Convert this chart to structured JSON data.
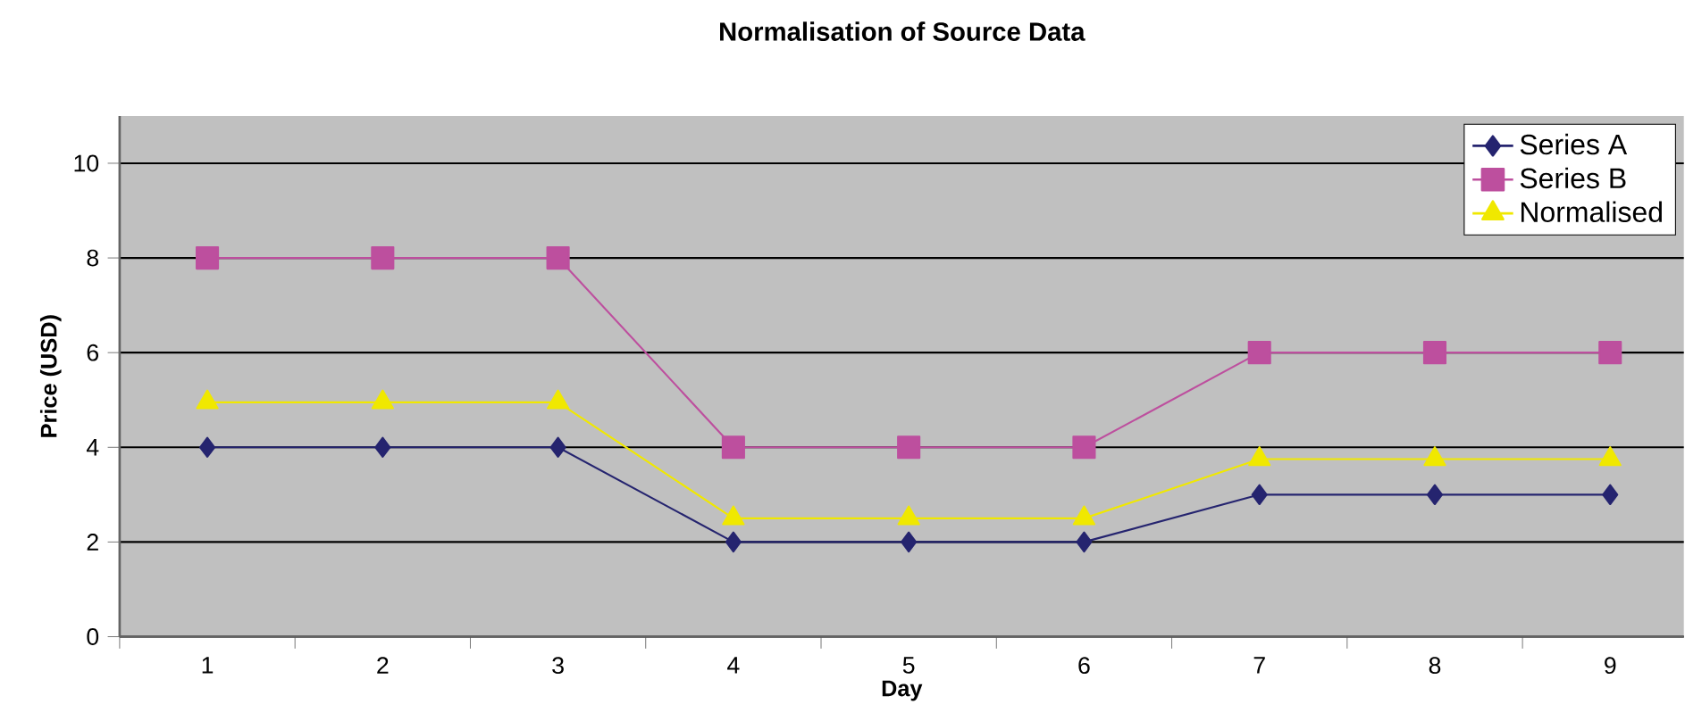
{
  "chart_data": {
    "type": "line",
    "title": "Normalisation of Source Data",
    "xlabel": "Day",
    "ylabel": "Price (USD)",
    "categories": [
      "1",
      "2",
      "3",
      "4",
      "5",
      "6",
      "7",
      "8",
      "9"
    ],
    "series": [
      {
        "name": "Series A",
        "color": "#25246f",
        "marker": "diamond",
        "values": [
          4,
          4,
          4,
          2,
          2,
          2,
          3,
          3,
          3
        ]
      },
      {
        "name": "Series B",
        "color": "#bd4f9e",
        "marker": "square",
        "values": [
          8,
          8,
          8,
          4,
          4,
          4,
          6,
          6,
          6
        ]
      },
      {
        "name": "Normalised",
        "color": "#f0e800",
        "marker": "triangle",
        "values": [
          4.95,
          4.95,
          4.95,
          2.5,
          2.5,
          2.5,
          3.75,
          3.75,
          3.75
        ]
      }
    ],
    "ylim": [
      0,
      11
    ],
    "yticks": [
      0,
      2,
      4,
      6,
      8,
      10
    ],
    "grid": "y",
    "legend": "top right",
    "line_style": "solid"
  }
}
